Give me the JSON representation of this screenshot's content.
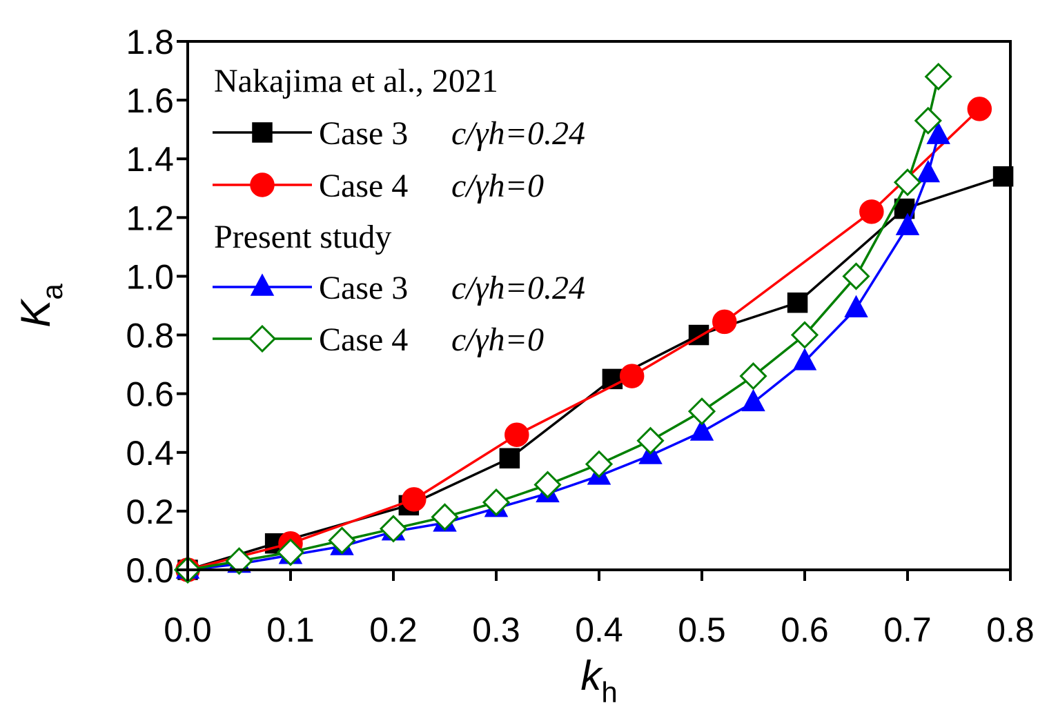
{
  "chart_data": {
    "type": "line",
    "title": "",
    "xlabel": "k",
    "xlabel_sub": "h",
    "ylabel": "K",
    "ylabel_sub": "a",
    "xlim": [
      0.0,
      0.8
    ],
    "ylim": [
      0.0,
      1.8
    ],
    "xticks": [
      "0.0",
      "0.1",
      "0.2",
      "0.3",
      "0.4",
      "0.5",
      "0.6",
      "0.7",
      "0.8"
    ],
    "yticks": [
      "0.0",
      "0.2",
      "0.4",
      "0.6",
      "0.8",
      "1.0",
      "1.2",
      "1.4",
      "1.6",
      "1.8"
    ],
    "grid": false,
    "legend_position": "top-left",
    "legend_groups": [
      {
        "title": "Nakajima et al., 2021",
        "series": [
          0,
          1
        ]
      },
      {
        "title": "Present study",
        "series": [
          2,
          3
        ]
      }
    ],
    "series": [
      {
        "name": "Case 3",
        "param": "c/γh=0.24",
        "color": "#000000",
        "marker": "square",
        "filled": true,
        "x": [
          0.0,
          0.085,
          0.215,
          0.313,
          0.413,
          0.497,
          0.593,
          0.697,
          0.793
        ],
        "y": [
          0.0,
          0.09,
          0.22,
          0.38,
          0.65,
          0.8,
          0.91,
          1.23,
          1.34
        ]
      },
      {
        "name": "Case 4",
        "param": "c/γh=0",
        "color": "#ff0000",
        "marker": "circle",
        "filled": true,
        "x": [
          0.0,
          0.1,
          0.22,
          0.32,
          0.432,
          0.522,
          0.665,
          0.77
        ],
        "y": [
          0.0,
          0.09,
          0.24,
          0.46,
          0.66,
          0.845,
          1.22,
          1.57
        ]
      },
      {
        "name": "Case 3",
        "param": "c/γh=0.24",
        "color": "#0000ff",
        "marker": "triangle",
        "filled": true,
        "x": [
          0.0,
          0.05,
          0.1,
          0.15,
          0.2,
          0.25,
          0.3,
          0.35,
          0.4,
          0.45,
          0.5,
          0.55,
          0.6,
          0.65,
          0.7,
          0.72,
          0.73
        ],
        "y": [
          0.0,
          0.02,
          0.05,
          0.08,
          0.13,
          0.16,
          0.21,
          0.26,
          0.32,
          0.39,
          0.47,
          0.57,
          0.71,
          0.89,
          1.17,
          1.35,
          1.48
        ]
      },
      {
        "name": "Case 4",
        "param": "c/γh=0",
        "color": "#008000",
        "marker": "diamond",
        "filled": false,
        "x": [
          0.0,
          0.05,
          0.1,
          0.15,
          0.2,
          0.25,
          0.3,
          0.35,
          0.4,
          0.45,
          0.5,
          0.55,
          0.6,
          0.65,
          0.7,
          0.72,
          0.73
        ],
        "y": [
          0.0,
          0.03,
          0.06,
          0.1,
          0.14,
          0.18,
          0.23,
          0.29,
          0.36,
          0.44,
          0.54,
          0.66,
          0.8,
          1.0,
          1.32,
          1.53,
          1.68
        ]
      }
    ]
  }
}
